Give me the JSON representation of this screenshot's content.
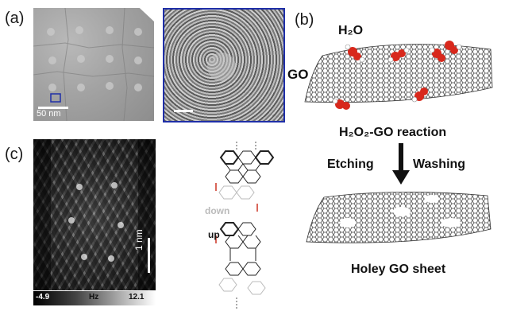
{
  "panels": {
    "a": {
      "label": "(a)",
      "scale_bar": "50 nm"
    },
    "b": {
      "label": "(b)",
      "water": "H₂O",
      "sheet": "GO",
      "reaction": "H₂O₂-GO reaction",
      "step_left": "Etching",
      "step_right": "Washing",
      "result": "Holey GO sheet"
    },
    "c": {
      "label": "(c)",
      "scale_bar": "1 nm",
      "down_label": "down",
      "up_label": "up",
      "colorbar_min": "-4.9",
      "colorbar_unit": "Hz",
      "colorbar_max": "12.1"
    }
  },
  "colors": {
    "frame_blue": "#1f2fa8",
    "oxygen_red": "#d8281c",
    "bond_red": "#cc3322"
  }
}
